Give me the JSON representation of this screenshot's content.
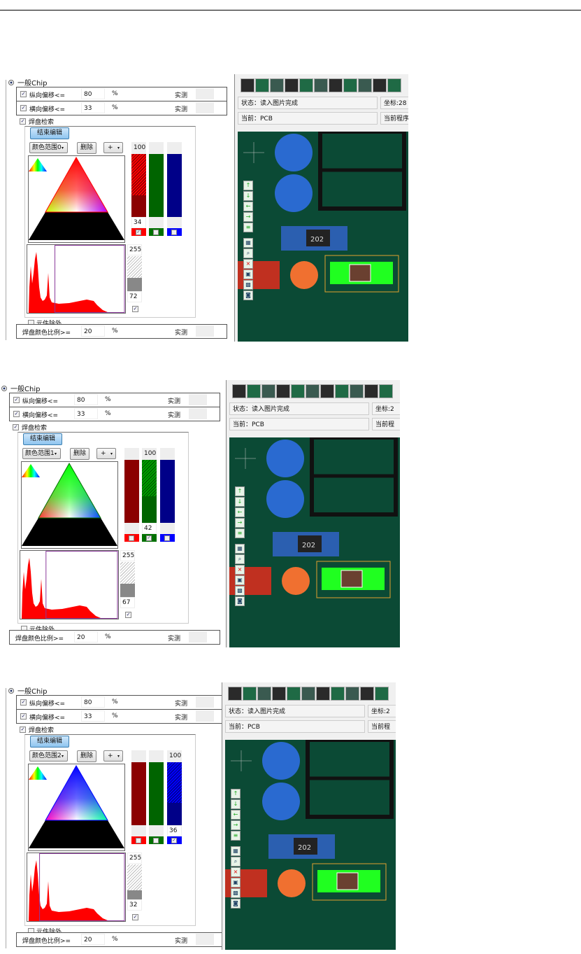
{
  "colors": {
    "red": "#ff0000",
    "green": "#007000",
    "blue": "#0000ff",
    "dark_red": "#8b0000",
    "dark_green": "#006400",
    "dark_blue": "#000088",
    "hist": "#ff0000",
    "range_box": "#8b3a9c",
    "pcb": "#0b4a35"
  },
  "panels": [
    {
      "group_label": "一般Chip",
      "rows": [
        {
          "label": "纵向偏移<=",
          "value": "80",
          "unit": "%",
          "measure": "实测",
          "checked": true
        },
        {
          "label": "横向偏移<=",
          "value": "33",
          "unit": "%",
          "measure": "实测",
          "checked": true
        }
      ],
      "pad_search": {
        "label": "焊盘检索",
        "checked": true
      },
      "end_edit": "结束编辑",
      "range_select": "颜色范围0",
      "delete": "删除",
      "op_select": "+",
      "dominant": "red",
      "channels": [
        {
          "name": "R",
          "top": "100",
          "bottom": "34",
          "checked": true,
          "range": [
            34,
            100
          ]
        },
        {
          "name": "G",
          "top": "",
          "bottom": "",
          "checked": false,
          "range": null
        },
        {
          "name": "B",
          "top": "",
          "bottom": "",
          "checked": false,
          "range": null
        }
      ],
      "gray": {
        "top": "255",
        "bottom": "72",
        "checked": true,
        "range": [
          72,
          255
        ]
      },
      "exclude": {
        "label": "元件除外",
        "checked": false
      },
      "ratio": {
        "label": "焊盘颜色比例>=",
        "value": "20",
        "unit": "%",
        "measure": "实测"
      },
      "status": "状态：读入图片完成",
      "current": "当前：PCB",
      "coord": "坐标:28",
      "current_prog": "当前程序"
    },
    {
      "group_label": "一般Chip",
      "rows": [
        {
          "label": "纵向偏移<=",
          "value": "80",
          "unit": "%",
          "measure": "实测",
          "checked": true
        },
        {
          "label": "横向偏移<=",
          "value": "33",
          "unit": "%",
          "measure": "实测",
          "checked": true
        }
      ],
      "pad_search": {
        "label": "焊盘检索",
        "checked": true
      },
      "end_edit": "结束编辑",
      "range_select": "颜色范围1",
      "delete": "删除",
      "op_select": "+",
      "dominant": "green",
      "channels": [
        {
          "name": "R",
          "top": "",
          "bottom": "",
          "checked": false,
          "range": null
        },
        {
          "name": "G",
          "top": "100",
          "bottom": "42",
          "checked": true,
          "range": [
            42,
            100
          ]
        },
        {
          "name": "B",
          "top": "",
          "bottom": "",
          "checked": false,
          "range": null
        }
      ],
      "gray": {
        "top": "255",
        "bottom": "67",
        "checked": true,
        "range": [
          67,
          255
        ]
      },
      "exclude": {
        "label": "元件除外",
        "checked": false
      },
      "ratio": {
        "label": "焊盘颜色比例>=",
        "value": "20",
        "unit": "%",
        "measure": "实测"
      },
      "status": "状态：读入图片完成",
      "current": "当前：PCB",
      "coord": "坐标:2",
      "current_prog": "当前程"
    },
    {
      "group_label": "一般Chip",
      "rows": [
        {
          "label": "纵向偏移<=",
          "value": "80",
          "unit": "%",
          "measure": "实测",
          "checked": true
        },
        {
          "label": "横向偏移<=",
          "value": "33",
          "unit": "%",
          "measure": "实测",
          "checked": true
        }
      ],
      "pad_search": {
        "label": "焊盘检索",
        "checked": true
      },
      "end_edit": "结束编辑",
      "range_select": "颜色范围2",
      "delete": "删除",
      "op_select": "+",
      "dominant": "blue",
      "channels": [
        {
          "name": "R",
          "top": "",
          "bottom": "",
          "checked": false,
          "range": null
        },
        {
          "name": "G",
          "top": "",
          "bottom": "",
          "checked": false,
          "range": null
        },
        {
          "name": "B",
          "top": "100",
          "bottom": "36",
          "checked": true,
          "range": [
            36,
            100
          ]
        }
      ],
      "gray": {
        "top": "255",
        "bottom": "32",
        "checked": true,
        "range": [
          32,
          255
        ]
      },
      "exclude": {
        "label": "元件除外",
        "checked": false
      },
      "ratio": {
        "label": "焊盘颜色比例>=",
        "value": "20",
        "unit": "%",
        "measure": "实测"
      },
      "status": "状态：读入图片完成",
      "current": "当前：PCB",
      "coord": "坐标:2",
      "current_prog": "当前程"
    }
  ],
  "pcb_label": "202"
}
